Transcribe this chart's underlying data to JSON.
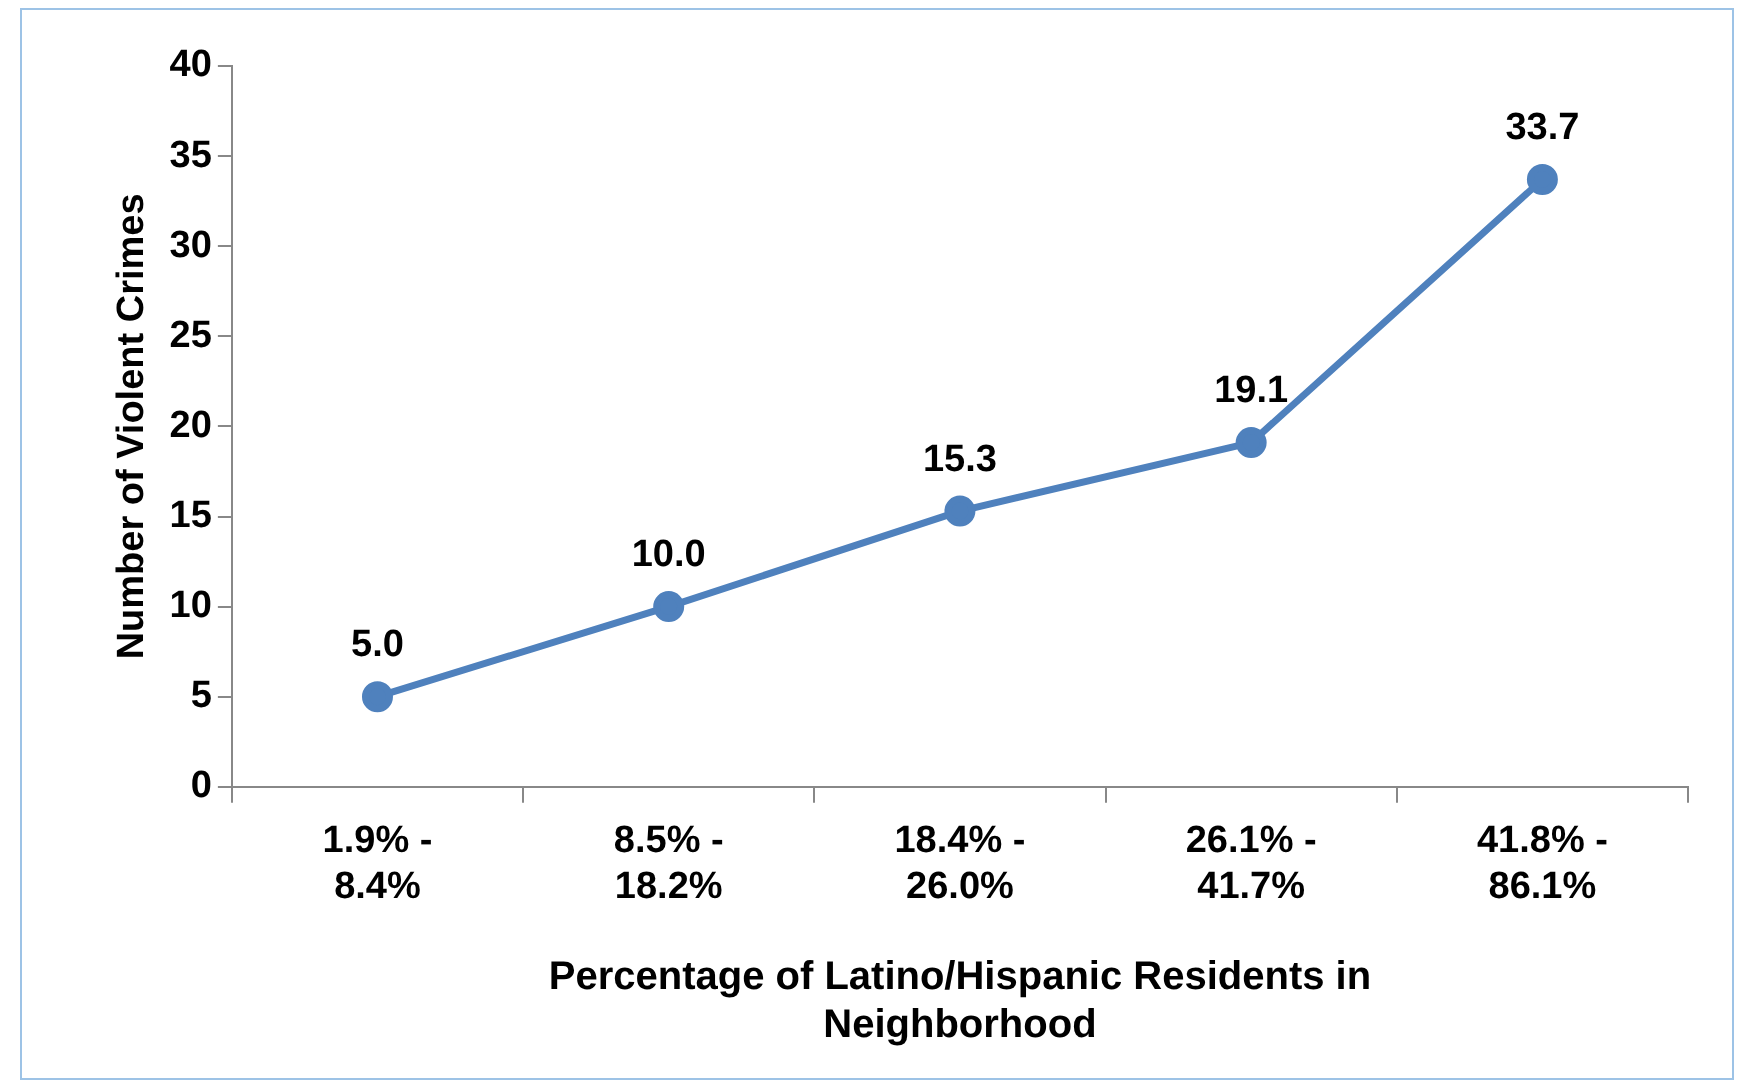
{
  "chart_data": {
    "type": "line",
    "xlabel": "Percentage of Latino/Hispanic Residents in Neighborhood",
    "ylabel": "Number of Violent Crimes",
    "categories": [
      "1.9% - 8.4%",
      "8.5% - 18.2%",
      "18.4% - 26.0%",
      "26.1% - 41.7%",
      "41.8% - 86.1%"
    ],
    "series": [
      {
        "color": "#4f81bd",
        "values": [
          5.0,
          10.0,
          15.3,
          19.1,
          33.7
        ]
      }
    ],
    "value_labels": [
      "5.0",
      "10.0",
      "15.3",
      "19.1",
      "33.7"
    ],
    "ylim": [
      0,
      40
    ],
    "yticks": [
      0,
      5,
      10,
      15,
      20,
      25,
      30,
      35,
      40
    ],
    "grid": false,
    "legend": false,
    "marker": "circle",
    "line_style": "solid"
  }
}
